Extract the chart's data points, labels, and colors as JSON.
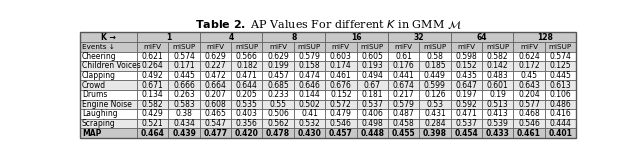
{
  "title_bold": "Table 2.",
  "title_rest": " AP Values For different ",
  "title_k": "K",
  "title_end": " in GMM ",
  "title_M": "M",
  "k_values": [
    "1",
    "4",
    "8",
    "16",
    "32",
    "64",
    "128"
  ],
  "col_header": [
    "Events ↓",
    "miFV",
    "miSUP",
    "miFV",
    "miSUP",
    "miFV",
    "miSUP",
    "miFV",
    "miSUP",
    "miFV",
    "miSUP",
    "miFV",
    "miSUP",
    "miFV",
    "miSUP"
  ],
  "rows": [
    [
      "Cheering",
      "0.621",
      "0.574",
      "0.629",
      "0.566",
      "0.629",
      "0.579",
      "0.603",
      "0.605",
      "0.61",
      "0.58",
      "0.598",
      "0.582",
      "0.624",
      "0.574"
    ],
    [
      "Children Voices",
      "0.264",
      "0.171",
      "0.227",
      "0.182",
      "0.199",
      "0.158",
      "0.174",
      "0.193",
      "0.176",
      "0.185",
      "0.152",
      "0.142",
      "0.172",
      "0.125"
    ],
    [
      "Clapping",
      "0.492",
      "0.445",
      "0.472",
      "0.471",
      "0.457",
      "0.474",
      "0.461",
      "0.494",
      "0.441",
      "0.449",
      "0.435",
      "0.483",
      "0.45",
      "0.445"
    ],
    [
      "Crowd",
      "0.671",
      "0.666",
      "0.664",
      "0.644",
      "0.685",
      "0.646",
      "0.676",
      "0.67",
      "0.674",
      "0.599",
      "0.647",
      "0.601",
      "0.643",
      "0.613"
    ],
    [
      "Drums",
      "0.134",
      "0.263",
      "0.207",
      "0.205",
      "0.233",
      "0.144",
      "0.152",
      "0.181",
      "0.217",
      "0.126",
      "0.197",
      "0.19",
      "0.204",
      "0.106"
    ],
    [
      "Engine Noise",
      "0.582",
      "0.583",
      "0.608",
      "0.535",
      "0.55",
      "0.502",
      "0.572",
      "0.537",
      "0.579",
      "0.53",
      "0.592",
      "0.513",
      "0.577",
      "0.486"
    ],
    [
      "Laughing",
      "0.429",
      "0.38",
      "0.465",
      "0.403",
      "0.506",
      "0.41",
      "0.479",
      "0.406",
      "0.487",
      "0.431",
      "0.471",
      "0.413",
      "0.468",
      "0.416"
    ],
    [
      "Scraping",
      "0.521",
      "0.434",
      "0.547",
      "0.356",
      "0.562",
      "0.532",
      "0.546",
      "0.498",
      "0.458",
      "0.284",
      "0.537",
      "0.539",
      "0.546",
      "0.444"
    ],
    [
      "MAP",
      "0.464",
      "0.439",
      "0.477",
      "0.420",
      "0.478",
      "0.430",
      "0.457",
      "0.448",
      "0.455",
      "0.398",
      "0.454",
      "0.433",
      "0.461",
      "0.401"
    ]
  ],
  "bg_grey": "#c8c8c8",
  "bg_white": "#ffffff",
  "bg_light_grey": "#e8e8e8",
  "border_color": "#555555",
  "font_size": 5.5,
  "title_font_size": 8.0
}
